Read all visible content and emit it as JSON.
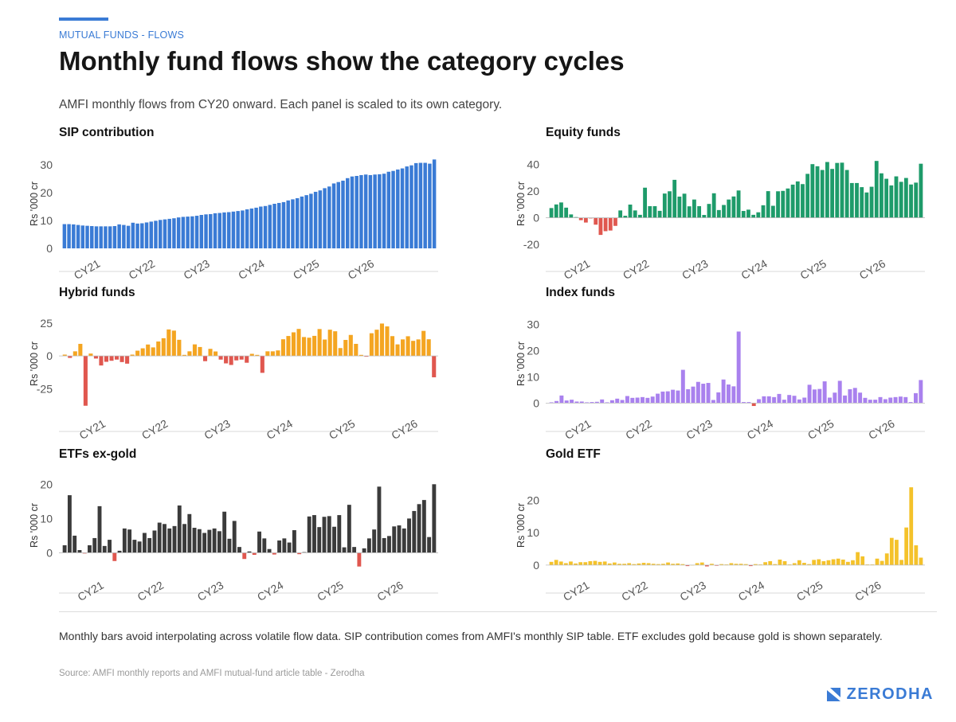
{
  "header": {
    "kicker": "MUTUAL FUNDS - FLOWS",
    "title": "Monthly fund flows show the category cycles",
    "subtitle": "AMFI monthly flows from CY20 onward. Each panel is scaled to its own category."
  },
  "footer": {
    "note": "Monthly bars avoid interpolating across volatile flow data. SIP contribution comes from AMFI's monthly SIP table. ETF excludes gold because gold is shown separately.",
    "source": "Source: AMFI monthly reports and AMFI mutual-fund article table - Zerodha",
    "brand": "ZERODHA"
  },
  "colors": {
    "accent": "#3a7bd5",
    "negative": "#e0574f",
    "axis_text": "#555555",
    "baseline": "#bbbbbb"
  },
  "chart_data": [
    {
      "type": "bar",
      "title": "SIP contribution",
      "ylabel": "Rs '000 cr",
      "ylim": [
        0,
        32
      ],
      "yticks": [
        0,
        10,
        20,
        30
      ],
      "xticks": [
        "CY21",
        "CY22",
        "CY23",
        "CY24",
        "CY25",
        "CY26"
      ],
      "tick_index": [
        8,
        20,
        32,
        44,
        56,
        68
      ],
      "pos_color": "#3a7bd5",
      "neg_color": "#e0574f",
      "values": [
        8.7,
        8.7,
        8.6,
        8.4,
        8.2,
        8.1,
        8.0,
        7.9,
        7.9,
        7.9,
        7.9,
        8.0,
        8.6,
        8.4,
        8.1,
        9.2,
        8.9,
        9.0,
        9.3,
        9.6,
        9.9,
        10.2,
        10.4,
        10.6,
        10.8,
        11.1,
        11.3,
        11.4,
        11.5,
        11.7,
        12.0,
        12.2,
        12.3,
        12.6,
        12.7,
        12.9,
        13.0,
        13.2,
        13.4,
        13.6,
        14.0,
        14.3,
        14.6,
        15.0,
        15.2,
        15.6,
        16.0,
        16.3,
        16.6,
        17.2,
        17.6,
        18.0,
        18.6,
        19.1,
        19.6,
        20.3,
        20.8,
        21.6,
        22.2,
        23.3,
        23.8,
        24.3,
        25.2,
        25.8,
        26.0,
        26.3,
        26.5,
        26.3,
        26.5,
        26.6,
        26.8,
        27.5,
        27.8,
        28.3,
        28.7,
        29.4,
        29.8,
        30.6,
        30.7,
        30.7,
        30.4,
        31.9
      ]
    },
    {
      "type": "bar",
      "title": "Equity funds",
      "ylabel": "Rs '000 cr",
      "ylim": [
        -23,
        44
      ],
      "yticks": [
        -20,
        0,
        20,
        40
      ],
      "xticks": [
        "CY21",
        "CY22",
        "CY23",
        "CY24",
        "CY25",
        "CY26"
      ],
      "tick_index": [
        8,
        20,
        32,
        44,
        56,
        68
      ],
      "pos_color": "#1e9b6a",
      "neg_color": "#e0574f",
      "values": [
        7.3,
        10.0,
        11.5,
        7.6,
        2.5,
        0.5,
        -1.8,
        -3.6,
        -0.5,
        -5.2,
        -12.9,
        -10.1,
        -9.6,
        -6.1,
        5.5,
        1.5,
        9.9,
        5.5,
        2.2,
        22.6,
        8.7,
        8.7,
        5.2,
        18.2,
        19.9,
        28.5,
        15.9,
        18.1,
        8.6,
        13.7,
        8.7,
        2.1,
        10.4,
        18.4,
        5.8,
        9.6,
        13.7,
        16.0,
        20.5,
        5.1,
        6.1,
        2.2,
        4.1,
        9.4,
        20.0,
        9.0,
        19.9,
        20.2,
        22.0,
        24.9,
        27.3,
        25.3,
        33.0,
        40.3,
        38.7,
        35.9,
        41.9,
        36.7,
        41.2,
        41.4,
        35.9,
        26.1,
        26.1,
        23.0,
        19.0,
        23.3,
        42.7,
        33.4,
        29.3,
        24.3,
        31.1,
        27.0,
        29.9,
        25.0,
        26.4,
        40.6
      ]
    },
    {
      "type": "bar",
      "title": "Hybrid funds",
      "ylabel": "Rs '000 cr",
      "ylim": [
        -40,
        28
      ],
      "yticks": [
        -25,
        0,
        25
      ],
      "xticks": [
        "CY21",
        "CY22",
        "CY23",
        "CY24",
        "CY25",
        "CY26"
      ],
      "tick_index": [
        8,
        20,
        32,
        44,
        56,
        68
      ],
      "pos_color": "#f4a521",
      "neg_color": "#e0574f",
      "values": [
        1.0,
        -1.5,
        3.5,
        9.2,
        -38.0,
        1.8,
        -2.0,
        -7.3,
        -4.5,
        -3.7,
        -2.8,
        -4.7,
        -5.9,
        1.0,
        4.0,
        5.8,
        8.7,
        6.5,
        11.0,
        13.5,
        20.2,
        19.3,
        12.3,
        0.8,
        3.5,
        8.8,
        6.8,
        -4.0,
        5.4,
        3.4,
        -2.8,
        -5.7,
        -6.9,
        -3.4,
        -2.8,
        -5.2,
        1.6,
        0.8,
        -12.9,
        3.5,
        3.5,
        4.2,
        12.7,
        15.2,
        18.0,
        20.6,
        14.4,
        13.9,
        15.3,
        20.5,
        12.5,
        20.0,
        18.8,
        6.0,
        12.2,
        16.0,
        9.2,
        0.8,
        -0.6,
        17.3,
        20.0,
        24.7,
        22.5,
        15.1,
        8.8,
        12.6,
        15.0,
        11.5,
        12.6,
        19.1,
        12.7,
        -16.3
      ]
    },
    {
      "type": "bar",
      "title": "Index funds",
      "ylabel": "Rs '000 cr",
      "ylim": [
        -2,
        32
      ],
      "yticks": [
        0,
        10,
        20,
        30
      ],
      "xticks": [
        "CY21",
        "CY22",
        "CY23",
        "CY24",
        "CY25",
        "CY26"
      ],
      "tick_index": [
        8,
        20,
        32,
        44,
        56,
        68
      ],
      "pos_color": "#a981ee",
      "neg_color": "#e0574f",
      "values": [
        0.3,
        0.8,
        2.9,
        1.0,
        1.3,
        0.6,
        0.6,
        0.3,
        0.4,
        0.5,
        1.4,
        0.3,
        1.1,
        1.7,
        1.2,
        2.7,
        2.0,
        2.1,
        2.3,
        2.0,
        2.5,
        3.6,
        4.4,
        4.5,
        5.1,
        4.8,
        12.7,
        5.3,
        6.3,
        8.1,
        7.4,
        7.7,
        1.2,
        4.1,
        9.0,
        7.1,
        6.4,
        27.3,
        0.4,
        0.4,
        -1.1,
        1.5,
        2.6,
        2.6,
        2.3,
        3.5,
        1.3,
        3.1,
        2.8,
        1.4,
        2.1,
        7.0,
        5.2,
        5.4,
        8.3,
        2.1,
        4.0,
        8.5,
        2.9,
        5.3,
        5.8,
        4.0,
        2.0,
        1.3,
        1.3,
        2.3,
        1.5,
        2.1,
        2.3,
        2.5,
        2.3,
        0.4,
        3.8,
        8.8
      ]
    },
    {
      "type": "bar",
      "title": "ETFs ex-gold",
      "ylabel": "Rs '000 cr",
      "ylim": [
        -5,
        21
      ],
      "yticks": [
        0,
        10,
        20
      ],
      "xticks": [
        "CY21",
        "CY22",
        "CY23",
        "CY24",
        "CY25",
        "CY26"
      ],
      "tick_index": [
        8,
        20,
        32,
        44,
        56,
        68
      ],
      "pos_color": "#3b3b3b",
      "neg_color": "#e0574f",
      "values": [
        2.2,
        16.8,
        5.0,
        0.8,
        -0.2,
        2.2,
        4.3,
        13.6,
        2.0,
        3.8,
        -2.4,
        0.6,
        7.1,
        6.8,
        3.8,
        3.3,
        5.8,
        4.3,
        6.5,
        8.8,
        8.4,
        7.1,
        7.8,
        13.8,
        8.4,
        11.3,
        7.3,
        6.9,
        5.8,
        6.7,
        7.1,
        6.3,
        12.0,
        4.1,
        9.3,
        1.7,
        -1.8,
        0.4,
        -0.6,
        6.2,
        4.2,
        1.1,
        -0.5,
        3.6,
        4.2,
        3.0,
        6.6,
        -0.4,
        0.2,
        10.6,
        11.0,
        7.5,
        10.5,
        10.7,
        7.6,
        11.0,
        1.6,
        14.0,
        1.7,
        -4.0,
        1.3,
        4.2,
        6.8,
        19.3,
        4.3,
        4.9,
        7.7,
        8.0,
        7.1,
        10.0,
        12.2,
        14.2,
        15.4,
        4.6,
        20.0
      ]
    },
    {
      "type": "bar",
      "title": "Gold ETF",
      "ylabel": "Rs '000 cr",
      "ylim": [
        -1.5,
        26
      ],
      "yticks": [
        0,
        10,
        20
      ],
      "xticks": [
        "CY21",
        "CY22",
        "CY23",
        "CY24",
        "CY25",
        "CY26"
      ],
      "tick_index": [
        8,
        20,
        32,
        44,
        56,
        68
      ],
      "pos_color": "#f4c22a",
      "neg_color": "#e0574f",
      "values": [
        1.0,
        1.6,
        1.1,
        0.6,
        1.1,
        0.5,
        0.9,
        0.9,
        1.2,
        1.3,
        1.0,
        1.1,
        0.5,
        0.8,
        0.4,
        0.4,
        0.6,
        0.3,
        0.5,
        0.7,
        0.6,
        0.4,
        0.3,
        0.4,
        0.8,
        0.4,
        0.5,
        0.3,
        -0.3,
        0.1,
        0.6,
        0.8,
        -0.4,
        0.4,
        -0.2,
        0.3,
        0.2,
        0.6,
        0.4,
        0.4,
        0.3,
        -0.3,
        0.3,
        0.2,
        0.9,
        1.2,
        0.3,
        1.7,
        1.2,
        0.2,
        0.6,
        1.5,
        0.7,
        0.3,
        1.6,
        1.8,
        1.2,
        1.5,
        1.8,
        2.0,
        1.7,
        1.0,
        1.5,
        4.0,
        2.7,
        0.2,
        0.2,
        2.0,
        1.3,
        3.6,
        8.4,
        7.8,
        1.6,
        11.6,
        24.0,
        6.1,
        2.3
      ]
    }
  ]
}
